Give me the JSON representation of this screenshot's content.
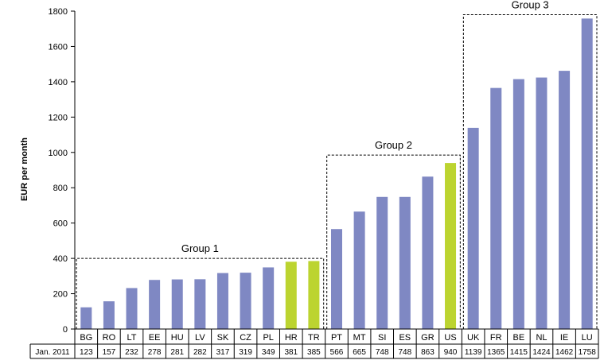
{
  "chart_data": {
    "type": "bar",
    "title": "",
    "xlabel": "",
    "ylabel": "EUR per month",
    "ylim": [
      0,
      1800
    ],
    "yticks": [
      0,
      200,
      400,
      600,
      800,
      1000,
      1200,
      1400,
      1600,
      1800
    ],
    "grid": false,
    "categories": [
      "BG",
      "RO",
      "LT",
      "EE",
      "HU",
      "LV",
      "SK",
      "CZ",
      "PL",
      "HR",
      "TR",
      "PT",
      "MT",
      "SI",
      "ES",
      "GR",
      "US",
      "UK",
      "FR",
      "BE",
      "NL",
      "IE",
      "LU"
    ],
    "values": [
      123,
      157,
      232,
      278,
      281,
      282,
      317,
      319,
      349,
      381,
      385,
      566,
      665,
      748,
      748,
      863,
      940,
      1139,
      1365,
      1415,
      1424,
      1462,
      1758
    ],
    "value_labels": [
      "123",
      "157",
      "232",
      "278",
      "281",
      "282",
      "317",
      "319",
      "349",
      "381",
      "385",
      "566",
      "665",
      "748",
      "748",
      "863",
      "940",
      "1139",
      "1365",
      "1415",
      "1424",
      "1462",
      "1758"
    ],
    "table_row_label": "Jan. 2011",
    "highlight": [
      "HR",
      "TR",
      "US"
    ],
    "colors": {
      "default": "#7f88c3",
      "highlight": "#bcd430"
    },
    "groups": [
      {
        "label": "Group 1",
        "start": 0,
        "end": 10,
        "top_value": 400
      },
      {
        "label": "Group 2",
        "start": 11,
        "end": 16,
        "top_value": 985
      },
      {
        "label": "Group 3",
        "start": 17,
        "end": 22,
        "top_value": 1780
      }
    ]
  }
}
